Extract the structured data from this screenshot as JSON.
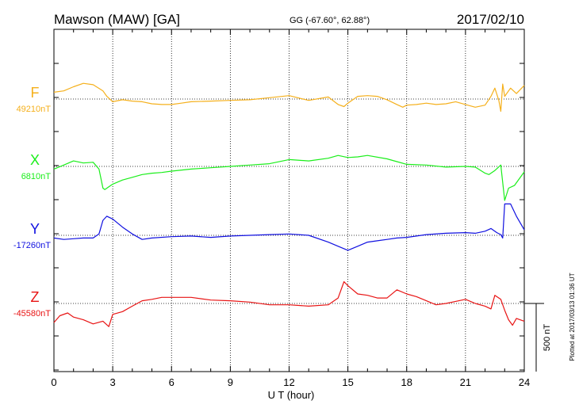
{
  "header": {
    "station": "Mawson (MAW)  [GA]",
    "coords": "GG (-67.60°,  62.88°)",
    "date": "2017/02/10"
  },
  "footer_note": "Plotted at 2017/03/13 01:36 UT",
  "scale_bar_label": "500 nT",
  "colors": {
    "F": "#f5b01c",
    "X": "#1aee1a",
    "Y": "#1010e0",
    "Z": "#e81414",
    "axis": "#000000"
  },
  "chart_data": {
    "type": "line",
    "xlabel": "U T (hour)",
    "xlim": [
      0,
      24
    ],
    "x_ticks": [
      "0",
      "3",
      "6",
      "9",
      "12",
      "15",
      "18",
      "21",
      "24"
    ],
    "scale_nT": 500,
    "series": [
      {
        "name": "F",
        "baseline_label": "49210nT",
        "baseline_nT": 49210,
        "x": [
          0,
          0.5,
          1,
          1.5,
          2,
          2.5,
          2.7,
          3,
          3.5,
          4,
          4.5,
          5,
          5.5,
          6,
          6.5,
          7,
          8,
          9,
          10,
          11,
          12,
          13,
          14,
          14.5,
          14.8,
          15,
          15.5,
          16,
          16.5,
          17,
          17.5,
          17.8,
          18,
          18.5,
          19,
          19.5,
          20,
          20.5,
          21,
          21.5,
          22,
          22.3,
          22.5,
          22.7,
          22.8,
          22.9,
          23,
          23.3,
          23.6,
          24
        ],
        "offset_nT": [
          50,
          60,
          90,
          115,
          105,
          60,
          20,
          -20,
          -5,
          -15,
          -20,
          -35,
          -40,
          -40,
          -30,
          -20,
          -15,
          -10,
          -5,
          10,
          25,
          -10,
          15,
          -40,
          -55,
          -30,
          20,
          25,
          20,
          -5,
          -40,
          -60,
          -45,
          -40,
          -30,
          -40,
          -35,
          -20,
          -40,
          -60,
          -45,
          20,
          80,
          -10,
          -90,
          110,
          20,
          80,
          40,
          100
        ]
      },
      {
        "name": "X",
        "baseline_label": "6810nT",
        "baseline_nT": 6810,
        "x": [
          0,
          0.5,
          1,
          1.5,
          2,
          2.3,
          2.5,
          2.6,
          2.8,
          3,
          3.5,
          4,
          4.5,
          5,
          5.5,
          6,
          7,
          8,
          9,
          10,
          11,
          12,
          13,
          14,
          14.5,
          15,
          15.5,
          16,
          17,
          17.5,
          18,
          19,
          20,
          21,
          21.5,
          22,
          22.2,
          22.5,
          22.8,
          23,
          23.2,
          23.5,
          24
        ],
        "offset_nT": [
          -20,
          10,
          40,
          25,
          30,
          -20,
          -160,
          -170,
          -150,
          -130,
          -100,
          -80,
          -60,
          -50,
          -45,
          -35,
          -20,
          -10,
          0,
          10,
          20,
          50,
          40,
          60,
          80,
          65,
          70,
          80,
          55,
          35,
          15,
          10,
          -5,
          0,
          -5,
          -50,
          -60,
          -30,
          10,
          -250,
          -160,
          -140,
          -40
        ]
      },
      {
        "name": "Y",
        "baseline_label": "-17260nT",
        "baseline_nT": -17260,
        "x": [
          0,
          0.5,
          1,
          1.5,
          2,
          2.3,
          2.5,
          2.7,
          3,
          3.5,
          4,
          4.5,
          5,
          6,
          7,
          8,
          9,
          10,
          11,
          12,
          13,
          14,
          14.5,
          15,
          15.5,
          16,
          16.5,
          17,
          17.5,
          18,
          18.5,
          19,
          20,
          21,
          21.5,
          22,
          22.3,
          22.6,
          22.8,
          22.9,
          23,
          23.3,
          23.6,
          24
        ],
        "offset_nT": [
          -20,
          -30,
          -25,
          -20,
          -20,
          10,
          110,
          140,
          120,
          60,
          10,
          -30,
          -20,
          -10,
          -5,
          -15,
          -5,
          0,
          5,
          10,
          0,
          -50,
          -80,
          -110,
          -80,
          -50,
          -40,
          -30,
          -20,
          -15,
          -5,
          5,
          15,
          20,
          15,
          30,
          50,
          20,
          5,
          -20,
          230,
          230,
          140,
          40
        ]
      },
      {
        "name": "Z",
        "baseline_label": "-45580nT",
        "baseline_nT": -45580,
        "x": [
          0,
          0.3,
          0.7,
          1,
          1.5,
          2,
          2.5,
          2.8,
          3,
          3.5,
          4,
          4.5,
          5,
          5.5,
          6,
          7,
          8,
          9,
          10,
          11,
          12,
          13,
          14,
          14.5,
          14.8,
          15,
          15.5,
          16,
          16.5,
          17,
          17.5,
          18,
          18.5,
          19,
          19.5,
          20,
          21,
          21.5,
          22,
          22.3,
          22.5,
          22.8,
          23,
          23.2,
          23.4,
          23.6,
          24
        ],
        "offset_nT": [
          -140,
          -90,
          -70,
          -100,
          -120,
          -150,
          -130,
          -170,
          -80,
          -60,
          -20,
          20,
          30,
          45,
          45,
          45,
          25,
          20,
          10,
          -10,
          -10,
          -20,
          -10,
          40,
          160,
          130,
          70,
          60,
          40,
          40,
          100,
          70,
          50,
          20,
          -10,
          0,
          30,
          0,
          -20,
          -40,
          60,
          30,
          -50,
          -120,
          -160,
          -110,
          -130
        ]
      }
    ]
  }
}
